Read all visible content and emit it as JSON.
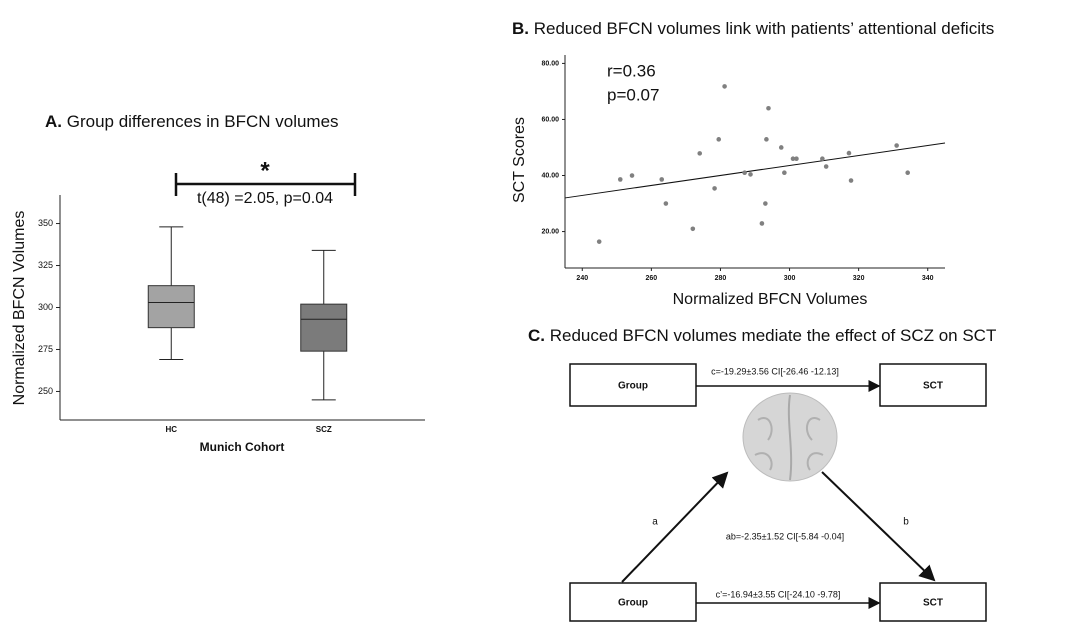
{
  "chart_data": [
    {
      "type": "box",
      "label": "A.",
      "title": "Group differences in BFCN volumes",
      "x_label": "Munich Cohort",
      "y_label": "Normalized BFCN Volumes",
      "categories": [
        "HC",
        "SCZ"
      ],
      "boxes": [
        {
          "min": 269,
          "q1": 288,
          "median": 303,
          "q3": 313,
          "max": 348
        },
        {
          "min": 245,
          "q1": 274,
          "median": 293,
          "q3": 302,
          "max": 334
        }
      ],
      "colors": [
        "#a3a3a3",
        "#7b7b7b"
      ],
      "ylim": [
        233,
        367
      ],
      "yticks": [
        250,
        275,
        300,
        325,
        350
      ],
      "annotations": [
        "*",
        "t(48) =2.05, p=0.04"
      ]
    },
    {
      "type": "scatter",
      "label": "B.",
      "title": "Reduced BFCN volumes link with patients’ attentional deficits",
      "x_label": "Normalized BFCN Volumes",
      "y_label": "SCT Scores",
      "x": [
        244.9,
        251,
        254.4,
        263,
        264.2,
        272,
        274,
        278.3,
        279.5,
        281.2,
        287,
        288.7,
        292,
        293,
        293.3,
        293.9,
        297.6,
        298.5,
        301,
        302,
        309.5,
        310.6,
        317.2,
        317.8,
        331,
        334.2
      ],
      "values": [
        16.4,
        38.6,
        40,
        38.6,
        30,
        21,
        47.9,
        35.4,
        52.9,
        71.8,
        41,
        40.4,
        22.9,
        30,
        52.9,
        64,
        50,
        41,
        46,
        46,
        46,
        43.2,
        48,
        38.2,
        50.7,
        41
      ],
      "color": "#808080",
      "fit_line": {
        "x": [
          235,
          345
        ],
        "y": [
          32,
          51.6
        ]
      },
      "xlim": [
        235,
        345
      ],
      "xticks": [
        240,
        260,
        280,
        300,
        320,
        340
      ],
      "ylim": [
        7,
        83
      ],
      "yticks": [
        {
          "value": 20,
          "label": "20.00"
        },
        {
          "value": 40,
          "label": "40.00"
        },
        {
          "value": 60,
          "label": "60.00"
        },
        {
          "value": 80,
          "label": "80.00"
        }
      ],
      "annotations": [
        "r=0.36",
        "p=0.07"
      ]
    }
  ],
  "diagram": {
    "label": "C.",
    "title": "Reduced BFCN volumes mediate the effect of SCZ on SCT",
    "nodes": [
      "Group",
      "SCT",
      "Group",
      "SCT"
    ],
    "edges": [
      "c=-19.29±3.56 CI[-26.46 -12.13]",
      "a",
      "b",
      "ab=-2.35±1.52 CI[-5.84 -0.04]",
      "c’=-16.94±3.55 CI[-24.10 -9.78]"
    ]
  }
}
